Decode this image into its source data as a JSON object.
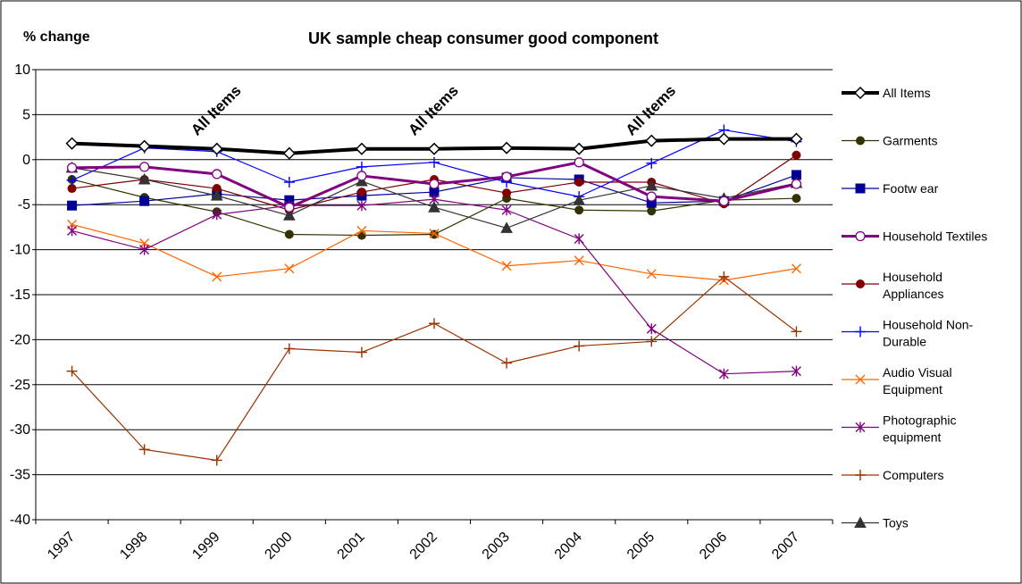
{
  "chart_data": {
    "type": "line",
    "title": "UK sample cheap consumer good component",
    "ylabel": "% change",
    "xlabel": "",
    "ylim": [
      -40,
      10
    ],
    "yticks": [
      10,
      5,
      0,
      -5,
      -10,
      -15,
      -20,
      -25,
      -30,
      -35,
      -40
    ],
    "categories": [
      "1997",
      "1998",
      "1999",
      "2000",
      "2001",
      "2002",
      "2003",
      "2004",
      "2005",
      "2006",
      "2007"
    ],
    "grid": "horizontal",
    "legend": "right",
    "annotations": [
      {
        "text": "All Items",
        "x": "1999"
      },
      {
        "text": "All Items",
        "x": "2002"
      },
      {
        "text": "All Items",
        "x": "2005"
      }
    ],
    "series": [
      {
        "name": "All Items",
        "color": "#000000",
        "marker": "diamond-open",
        "width": 4,
        "legend_lines": [
          "All Items"
        ],
        "values": [
          1.8,
          1.5,
          1.2,
          0.7,
          1.2,
          1.2,
          1.3,
          1.2,
          2.1,
          2.3,
          2.3
        ]
      },
      {
        "name": "Garments",
        "color": "#333300",
        "marker": "circle",
        "width": 1.2,
        "legend_lines": [
          "Garments"
        ],
        "values": [
          -2.2,
          -4.2,
          -5.8,
          -8.3,
          -8.4,
          -8.3,
          -4.3,
          -5.6,
          -5.7,
          -4.5,
          -4.3
        ]
      },
      {
        "name": "Footwear",
        "color": "#000099",
        "marker": "square",
        "width": 1.2,
        "legend_lines": [
          "Footw ear"
        ],
        "values": [
          -5.1,
          -4.6,
          -3.8,
          -4.5,
          -4.0,
          -3.6,
          -2.0,
          -2.2,
          -4.8,
          -4.6,
          -1.7
        ]
      },
      {
        "name": "Household Textiles",
        "color": "#800080",
        "marker": "circle-open",
        "width": 3,
        "legend_lines": [
          "Household Textiles"
        ],
        "values": [
          -0.9,
          -0.8,
          -1.6,
          -5.3,
          -1.8,
          -2.7,
          -1.9,
          -0.3,
          -4.1,
          -4.6,
          -2.7
        ]
      },
      {
        "name": "Household Appliances",
        "color": "#800000",
        "marker": "circle",
        "width": 1.2,
        "legend_lines": [
          "Household",
          "Appliances"
        ],
        "values": [
          -3.2,
          -2.2,
          -3.2,
          -5.6,
          -3.6,
          -2.2,
          -3.7,
          -2.5,
          -2.5,
          -4.9,
          0.5
        ]
      },
      {
        "name": "Household Non-Durable",
        "color": "#0000ff",
        "marker": "plus",
        "width": 1.2,
        "legend_lines": [
          "Household Non-",
          "Durable"
        ],
        "values": [
          -2.3,
          1.3,
          0.9,
          -2.5,
          -0.8,
          -0.3,
          -2.5,
          -4.1,
          -0.4,
          3.3,
          2.0
        ]
      },
      {
        "name": "Audio Visual Equipment",
        "color": "#ff6600",
        "marker": "x",
        "width": 1.2,
        "legend_lines": [
          "Audio Visual",
          "Equipment"
        ],
        "values": [
          -7.2,
          -9.3,
          -13.0,
          -12.1,
          -7.9,
          -8.2,
          -11.8,
          -11.2,
          -12.7,
          -13.4,
          -12.1
        ]
      },
      {
        "name": "Photographic equipment",
        "color": "#800080",
        "marker": "asterisk",
        "width": 1.2,
        "legend_lines": [
          "Photographic",
          "equipment"
        ],
        "values": [
          -7.9,
          -10.0,
          -6.1,
          -5.1,
          -5.1,
          -4.4,
          -5.6,
          -8.8,
          -18.8,
          -23.8,
          -23.5
        ]
      },
      {
        "name": "Computers",
        "color": "#993300",
        "marker": "plus",
        "width": 1.2,
        "legend_lines": [
          "Computers"
        ],
        "values": [
          -23.5,
          -32.2,
          -33.4,
          -21.0,
          -21.4,
          -18.2,
          -22.6,
          -20.7,
          -20.2,
          -13.0,
          -19.1
        ]
      },
      {
        "name": "Toys",
        "color": "#333333",
        "marker": "triangle",
        "width": 1.2,
        "legend_lines": [
          "Toys"
        ],
        "values": [
          -0.9,
          -2.2,
          -4.0,
          -6.2,
          -2.4,
          -5.3,
          -7.6,
          -4.5,
          -2.9,
          -4.3,
          -2.6
        ]
      }
    ]
  }
}
